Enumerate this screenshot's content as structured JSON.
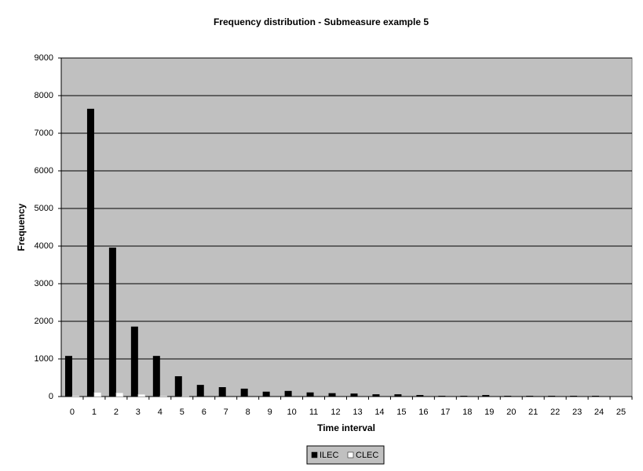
{
  "chart_data": {
    "type": "bar",
    "title": "Frequency distribution - Submeasure example 5",
    "x_label": "Time interval",
    "y_label": "Frequency",
    "categories": [
      "0",
      "1",
      "2",
      "3",
      "4",
      "5",
      "6",
      "7",
      "8",
      "9",
      "10",
      "11",
      "12",
      "13",
      "14",
      "15",
      "16",
      "17",
      "18",
      "19",
      "20",
      "21",
      "22",
      "23",
      "24",
      "25"
    ],
    "series": [
      {
        "name": "ILEC",
        "color": "#000000",
        "values": [
          1080,
          7650,
          3960,
          1860,
          1080,
          540,
          310,
          250,
          210,
          130,
          150,
          110,
          90,
          80,
          60,
          60,
          40,
          20,
          20,
          40,
          20,
          20,
          20,
          20,
          20,
          0
        ]
      },
      {
        "name": "CLEC",
        "color": "#ffffff",
        "values": [
          20,
          110,
          100,
          60,
          20,
          10,
          0,
          0,
          0,
          0,
          0,
          0,
          0,
          0,
          0,
          0,
          0,
          0,
          0,
          0,
          0,
          0,
          0,
          0,
          0,
          0
        ]
      }
    ],
    "ylim": [
      0,
      9000
    ],
    "yticks": [
      0,
      1000,
      2000,
      3000,
      4000,
      5000,
      6000,
      7000,
      8000,
      9000
    ],
    "grid": true,
    "legend": "bottom",
    "plot_background": "#c0c0c0"
  }
}
